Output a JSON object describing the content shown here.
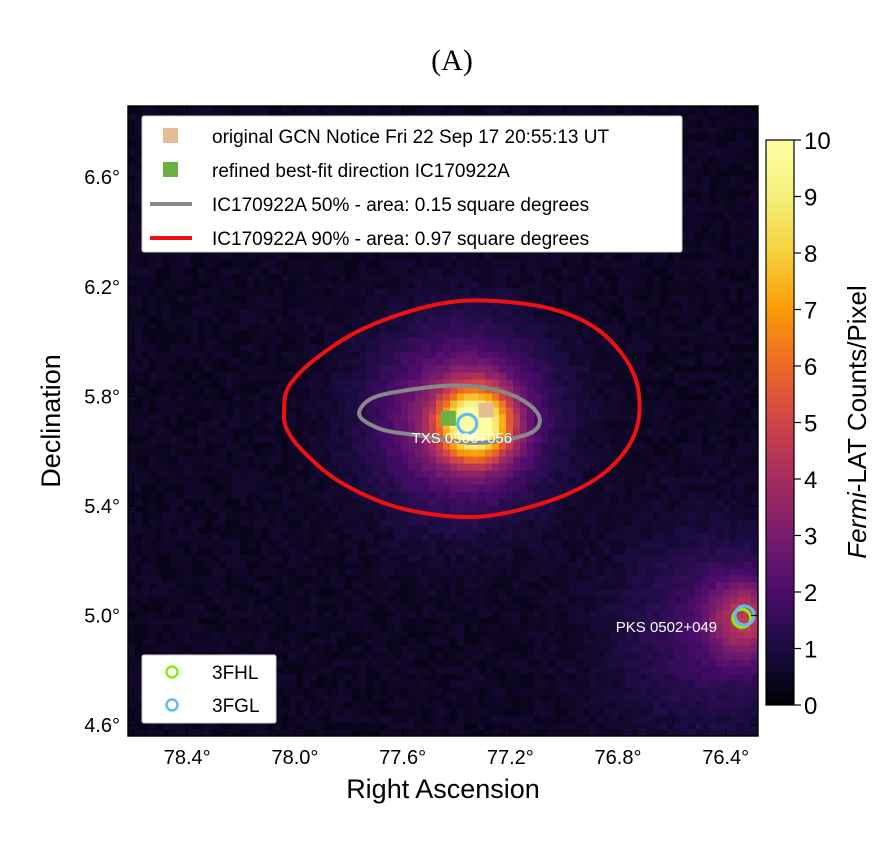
{
  "panel_label": "(A)",
  "chart_data": {
    "type": "heatmap",
    "title": "",
    "xlabel": "Right Ascension",
    "ylabel": "Declination",
    "x_inverted": true,
    "xlim": [
      78.62,
      76.28
    ],
    "ylim": [
      4.56,
      6.86
    ],
    "xticks": [
      78.4,
      78.0,
      77.6,
      77.2,
      76.8,
      76.4
    ],
    "xtick_labels": [
      "78.4°",
      "78.0°",
      "77.6°",
      "77.2°",
      "76.8°",
      "76.4°"
    ],
    "yticks": [
      4.6,
      5.0,
      5.4,
      5.8,
      6.2,
      6.6
    ],
    "ytick_labels": [
      "4.6°",
      "5.0°",
      "5.4°",
      "5.8°",
      "6.2°",
      "6.6°"
    ],
    "colorbar": {
      "label_italic": "Fermi",
      "label_rest": "-LAT Counts/Pixel",
      "min": 0,
      "max": 10,
      "ticks": [
        0,
        1,
        2,
        3,
        4,
        5,
        6,
        7,
        8,
        9,
        10
      ],
      "tick_labels": [
        "0",
        "1",
        "2",
        "3",
        "4",
        "5",
        "6",
        "7",
        "8",
        "9",
        "10"
      ],
      "colormap": "inferno"
    },
    "hotspots": [
      {
        "ra": 77.33,
        "dec": 5.7,
        "peak": 8.5,
        "sigma": 0.09
      },
      {
        "ra": 77.38,
        "dec": 5.72,
        "peak": 3.0,
        "sigma": 0.22
      },
      {
        "ra": 76.32,
        "dec": 4.99,
        "peak": 3.2,
        "sigma": 0.1
      },
      {
        "ra": 76.45,
        "dec": 4.95,
        "peak": 1.2,
        "sigma": 0.25
      }
    ],
    "background_level": 0.5,
    "markers": [
      {
        "name": "original GCN Notice Fri 22 Sep 17 20:55:13 UT",
        "shape": "square",
        "color": "#e3bc8f",
        "ra": 77.29,
        "dec": 5.75
      },
      {
        "name": "refined best-fit direction IC170922A",
        "shape": "square",
        "color": "#6ab142",
        "ra": 77.43,
        "dec": 5.72
      }
    ],
    "contours": [
      {
        "name": "IC170922A 50% - area: 0.15 square degrees",
        "color": "#888888",
        "points": [
          [
            77.76,
            5.73
          ],
          [
            77.72,
            5.79
          ],
          [
            77.6,
            5.82
          ],
          [
            77.4,
            5.84
          ],
          [
            77.24,
            5.82
          ],
          [
            77.13,
            5.77
          ],
          [
            77.09,
            5.71
          ],
          [
            77.14,
            5.66
          ],
          [
            77.33,
            5.63
          ],
          [
            77.56,
            5.66
          ],
          [
            77.68,
            5.68
          ]
        ]
      },
      {
        "name": "IC170922A 90% - area: 0.97 square degrees",
        "color": "#ee1111",
        "points": [
          [
            78.04,
            5.76
          ],
          [
            78.02,
            5.84
          ],
          [
            77.92,
            5.94
          ],
          [
            77.74,
            6.05
          ],
          [
            77.5,
            6.13
          ],
          [
            77.3,
            6.15
          ],
          [
            77.05,
            6.12
          ],
          [
            76.87,
            6.04
          ],
          [
            76.75,
            5.9
          ],
          [
            76.72,
            5.75
          ],
          [
            76.76,
            5.62
          ],
          [
            76.88,
            5.5
          ],
          [
            77.08,
            5.41
          ],
          [
            77.33,
            5.36
          ],
          [
            77.6,
            5.39
          ],
          [
            77.82,
            5.48
          ],
          [
            77.96,
            5.59
          ],
          [
            78.03,
            5.68
          ]
        ]
      }
    ],
    "sources": [
      {
        "name": "3FHL",
        "color": "#88ee11",
        "ra": 76.34,
        "dec": 4.99
      },
      {
        "name": "3FGL",
        "color": "#66bbee",
        "ra": 77.36,
        "dec": 5.7
      },
      {
        "name": "3FGL",
        "color": "#66bbee",
        "ra": 76.33,
        "dec": 5.0
      }
    ],
    "annotations": [
      {
        "text": "TXS 0506+056",
        "ra": 77.38,
        "dec": 5.63
      },
      {
        "text": "PKS 0502+049",
        "ra": 76.62,
        "dec": 4.94
      }
    ],
    "legend_top": {
      "placement": "top-left",
      "entries": [
        {
          "label": "original GCN Notice Fri 22 Sep 17 20:55:13 UT",
          "kind": "square",
          "color": "#e3bc8f"
        },
        {
          "label": "refined best-fit direction IC170922A",
          "kind": "square",
          "color": "#6ab142"
        },
        {
          "label": "IC170922A 50% - area: 0.15 square degrees",
          "kind": "line",
          "color": "#888888"
        },
        {
          "label": "IC170922A 90% - area: 0.97 square degrees",
          "kind": "line",
          "color": "#ee1111"
        }
      ]
    },
    "legend_bottom": {
      "placement": "bottom-left",
      "entries": [
        {
          "label": "3FHL",
          "kind": "circle",
          "color": "#88ee11"
        },
        {
          "label": "3FGL",
          "kind": "circle",
          "color": "#66bbee"
        }
      ]
    }
  }
}
